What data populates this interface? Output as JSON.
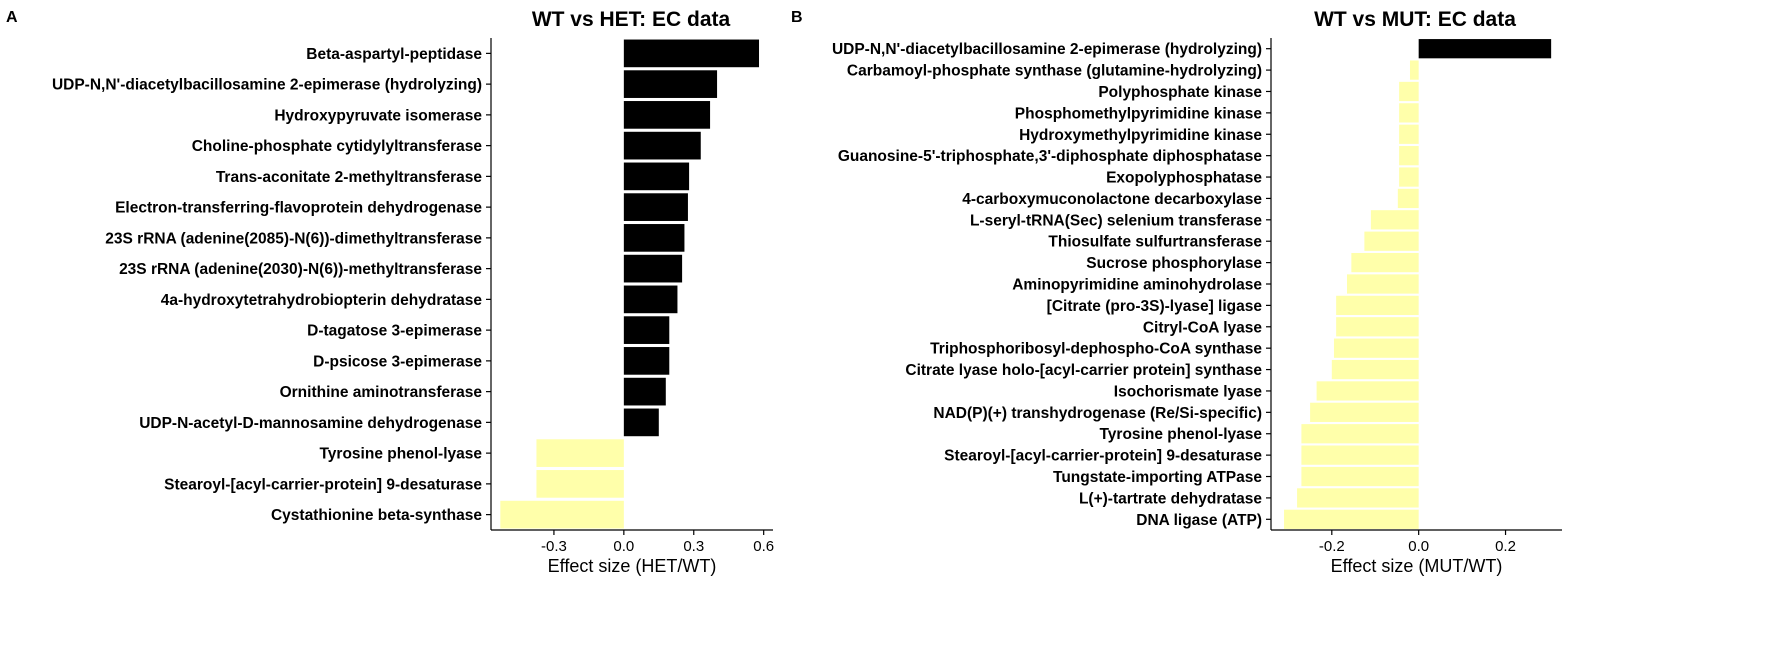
{
  "colors": {
    "positive": "#000000",
    "negative": "#FFFFAA",
    "axis": "#000000"
  },
  "chart_data": [
    {
      "type": "bar",
      "orientation": "horizontal",
      "panel": "A",
      "title": "WT vs HET: EC data",
      "xlabel": "Effect size (HET/WT)",
      "ylabel": "",
      "xlim": [
        -0.57,
        0.64
      ],
      "xticks": [
        -0.3,
        0.0,
        0.3,
        0.6
      ],
      "xtick_labels": [
        "-0.3",
        "0.0",
        "0.3",
        "0.6"
      ],
      "grid": false,
      "categories": [
        "Beta-aspartyl-peptidase",
        "UDP-N,N'-diacetylbacillosamine 2-epimerase (hydrolyzing)",
        "Hydroxypyruvate isomerase",
        "Choline-phosphate cytidylyltransferase",
        "Trans-aconitate 2-methyltransferase",
        "Electron-transferring-flavoprotein dehydrogenase",
        "23S rRNA (adenine(2085)-N(6))-dimethyltransferase",
        "23S rRNA (adenine(2030)-N(6))-methyltransferase",
        "4a-hydroxytetrahydrobiopterin dehydratase",
        "D-tagatose 3-epimerase",
        "D-psicose 3-epimerase",
        "Ornithine aminotransferase",
        "UDP-N-acetyl-D-mannosamine dehydrogenase",
        "Tyrosine phenol-lyase",
        "Stearoyl-[acyl-carrier-protein] 9-desaturase",
        "Cystathionine beta-synthase"
      ],
      "values": [
        0.58,
        0.4,
        0.37,
        0.33,
        0.28,
        0.275,
        0.26,
        0.25,
        0.23,
        0.195,
        0.195,
        0.18,
        0.15,
        -0.375,
        -0.375,
        -0.53
      ]
    },
    {
      "type": "bar",
      "orientation": "horizontal",
      "panel": "B",
      "title": "WT vs MUT: EC data",
      "xlabel": "Effect size (MUT/WT)",
      "ylabel": "",
      "xlim": [
        -0.34,
        0.33
      ],
      "xticks": [
        -0.2,
        0.0,
        0.2
      ],
      "xtick_labels": [
        "-0.2",
        "0.0",
        "0.2"
      ],
      "grid": false,
      "categories": [
        "UDP-N,N'-diacetylbacillosamine 2-epimerase (hydrolyzing)",
        "Carbamoyl-phosphate synthase (glutamine-hydrolyzing)",
        "Polyphosphate kinase",
        "Phosphomethylpyrimidine kinase",
        "Hydroxymethylpyrimidine kinase",
        "Guanosine-5'-triphosphate,3'-diphosphate diphosphatase",
        "Exopolyphosphatase",
        "4-carboxymuconolactone decarboxylase",
        "L-seryl-tRNA(Sec) selenium transferase",
        "Thiosulfate sulfurtransferase",
        "Sucrose phosphorylase",
        "Aminopyrimidine aminohydrolase",
        "[Citrate (pro-3S)-lyase] ligase",
        "Citryl-CoA lyase",
        "Triphosphoribosyl-dephospho-CoA synthase",
        "Citrate lyase holo-[acyl-carrier protein] synthase",
        "Isochorismate lyase",
        "NAD(P)(+) transhydrogenase (Re/Si-specific)",
        "Tyrosine phenol-lyase",
        "Stearoyl-[acyl-carrier-protein] 9-desaturase",
        "Tungstate-importing ATPase",
        "L(+)-tartrate dehydratase",
        "DNA ligase (ATP)"
      ],
      "values": [
        0.305,
        -0.02,
        -0.045,
        -0.045,
        -0.045,
        -0.045,
        -0.045,
        -0.048,
        -0.11,
        -0.125,
        -0.155,
        -0.165,
        -0.19,
        -0.19,
        -0.195,
        -0.2,
        -0.235,
        -0.25,
        -0.27,
        -0.27,
        -0.27,
        -0.28,
        -0.31
      ]
    }
  ]
}
